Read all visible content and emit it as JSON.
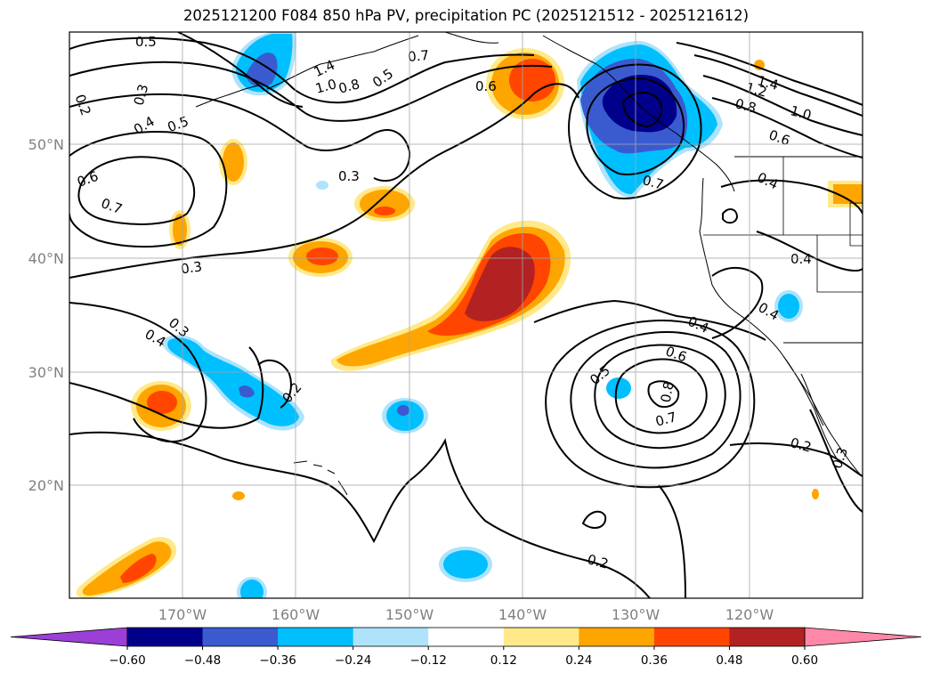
{
  "title": "2025121200 F084 850 hPa PV, precipitation PC (2025121512 - 2025121612)",
  "latitude_labels": [
    "50°N",
    "40°N",
    "30°N",
    "20°N"
  ],
  "longitude_labels": [
    "170°W",
    "160°W",
    "150°W",
    "140°W",
    "130°W",
    "120°W"
  ],
  "pv_contour_labels": [
    "0.5",
    "0.2",
    "0.3",
    "0.4",
    "0.5",
    "0.6",
    "0.7",
    "1.4",
    "1.0",
    "0.8",
    "0.5",
    "0.7",
    "0.6",
    "0.3",
    "0.3",
    "0.3",
    "0.4",
    "0.2",
    "0.4",
    "0.6",
    "0.5",
    "0.8",
    "0.7",
    "0.2",
    "0.7",
    "1.4",
    "1.2",
    "0.8",
    "1.0",
    "0.6",
    "0.4",
    "0.4",
    "0.4",
    "0.2",
    "0.3"
  ],
  "colorbar": {
    "ticks": [
      "−0.60",
      "−0.48",
      "−0.36",
      "−0.24",
      "−0.12",
      "0.12",
      "0.24",
      "0.36",
      "0.48",
      "0.60"
    ],
    "colors": [
      "#9b3fd6",
      "#00008b",
      "#3a5bd0",
      "#00bfff",
      "#aee3fb",
      "#ffffff",
      "#ffe989",
      "#ffa500",
      "#ff4500",
      "#b22222",
      "#ff88a8"
    ]
  },
  "shading_colors": {
    "neg_strong": "#00008b",
    "neg_mid": "#3a5bd0",
    "neg": "#00bfff",
    "neg_weak": "#aee3fb",
    "pos_weak": "#ffe989",
    "pos": "#ffa500",
    "pos_mid": "#ff4500",
    "pos_strong": "#b22222"
  }
}
